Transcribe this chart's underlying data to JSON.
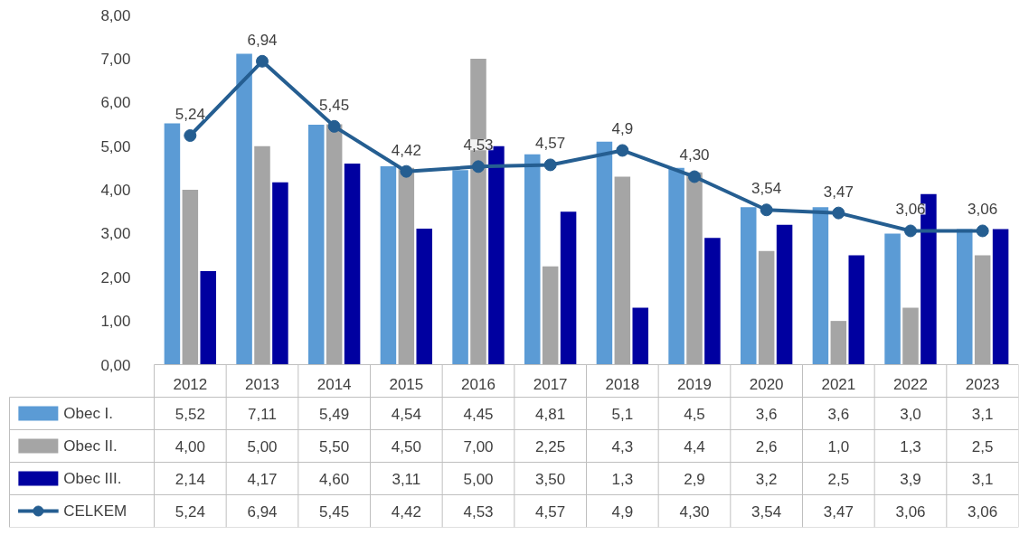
{
  "chart_data": {
    "type": "bar",
    "categories": [
      "2012",
      "2013",
      "2014",
      "2015",
      "2016",
      "2017",
      "2018",
      "2019",
      "2020",
      "2021",
      "2022",
      "2023"
    ],
    "ylim": [
      0,
      8
    ],
    "yticks": [
      {
        "value": 0,
        "label": "0,00"
      },
      {
        "value": 1,
        "label": "1,00"
      },
      {
        "value": 2,
        "label": "2,00"
      },
      {
        "value": 3,
        "label": "3,00"
      },
      {
        "value": 4,
        "label": "4,00"
      },
      {
        "value": 5,
        "label": "5,00"
      },
      {
        "value": 6,
        "label": "6,00"
      },
      {
        "value": 7,
        "label": "7,00"
      },
      {
        "value": 8,
        "label": "8,00"
      }
    ],
    "grid": false,
    "legend": "bottom",
    "series": [
      {
        "name": "Obec I.",
        "color": "#5b9bd5",
        "values": [
          5.52,
          7.11,
          5.49,
          4.54,
          4.45,
          4.81,
          5.1,
          4.5,
          3.6,
          3.6,
          3.0,
          3.1
        ],
        "value_labels": [
          "5,52",
          "7,11",
          "5,49",
          "4,54",
          "4,45",
          "4,81",
          "5,1",
          "4,5",
          "3,6",
          "3,6",
          "3,0",
          "3,1"
        ]
      },
      {
        "name": "Obec II.",
        "color": "#a5a5a5",
        "values": [
          4.0,
          5.0,
          5.5,
          4.5,
          7.0,
          2.25,
          4.3,
          4.4,
          2.6,
          1.0,
          1.3,
          2.5
        ],
        "value_labels": [
          "4,00",
          "5,00",
          "5,50",
          "4,50",
          "7,00",
          "2,25",
          "4,3",
          "4,4",
          "2,6",
          "1,0",
          "1,3",
          "2,5"
        ]
      },
      {
        "name": "Obec III.",
        "color": "#0000a0",
        "values": [
          2.14,
          4.17,
          4.6,
          3.11,
          5.0,
          3.5,
          1.3,
          2.9,
          3.2,
          2.5,
          3.9,
          3.1
        ],
        "value_labels": [
          "2,14",
          "4,17",
          "4,60",
          "3,11",
          "5,00",
          "3,50",
          "1,3",
          "2,9",
          "3,2",
          "2,5",
          "3,9",
          "3,1"
        ]
      },
      {
        "name": "CELKEM",
        "type": "line",
        "color": "#255e91",
        "marker": "circle",
        "values": [
          5.24,
          6.94,
          5.45,
          4.42,
          4.53,
          4.57,
          4.9,
          4.3,
          3.54,
          3.47,
          3.06,
          3.06
        ],
        "value_labels": [
          "5,24",
          "6,94",
          "5,45",
          "4,42",
          "4,53",
          "4,57",
          "4,9",
          "4,30",
          "3,54",
          "3,47",
          "3,06",
          "3,06"
        ]
      }
    ]
  }
}
